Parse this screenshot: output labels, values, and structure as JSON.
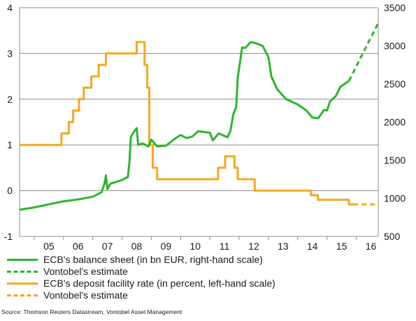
{
  "chart_data": {
    "type": "line",
    "x_tick_labels": [
      "05",
      "06",
      "07",
      "08",
      "09",
      "10",
      "11",
      "12",
      "13",
      "14",
      "15",
      "16"
    ],
    "y_left": {
      "ylim": [
        -1,
        4
      ],
      "ticks": [
        "-1",
        "0",
        "1",
        "2",
        "3",
        "4"
      ]
    },
    "y_right": {
      "ylim": [
        500,
        3500
      ],
      "ticks": [
        "500",
        "1000",
        "1500",
        "2000",
        "2500",
        "3000",
        "3500"
      ]
    },
    "grid": "horizontal",
    "legend_placement": "bottom",
    "colors": {
      "balance": "#2db52d",
      "rate": "#f5a81e"
    },
    "series": [
      {
        "name": "ECB's balance sheet (in bn EUR, right-hand scale)",
        "axis": "right",
        "style": "solid",
        "points": [
          [
            2004.5,
            850
          ],
          [
            2005.0,
            880
          ],
          [
            2005.5,
            920
          ],
          [
            2006.0,
            960
          ],
          [
            2006.5,
            985
          ],
          [
            2007.0,
            1020
          ],
          [
            2007.3,
            1080
          ],
          [
            2007.4,
            1190
          ],
          [
            2007.45,
            1300
          ],
          [
            2007.5,
            1120
          ],
          [
            2007.6,
            1190
          ],
          [
            2008.0,
            1240
          ],
          [
            2008.2,
            1280
          ],
          [
            2008.25,
            1460
          ],
          [
            2008.3,
            1800
          ],
          [
            2008.4,
            1870
          ],
          [
            2008.5,
            1920
          ],
          [
            2008.55,
            1700
          ],
          [
            2008.7,
            1720
          ],
          [
            2008.9,
            1680
          ],
          [
            2009.0,
            1770
          ],
          [
            2009.2,
            1680
          ],
          [
            2009.5,
            1690
          ],
          [
            2009.8,
            1780
          ],
          [
            2010.0,
            1830
          ],
          [
            2010.2,
            1790
          ],
          [
            2010.4,
            1810
          ],
          [
            2010.6,
            1880
          ],
          [
            2011.0,
            1860
          ],
          [
            2011.1,
            1760
          ],
          [
            2011.3,
            1850
          ],
          [
            2011.6,
            1800
          ],
          [
            2011.7,
            1880
          ],
          [
            2011.8,
            2100
          ],
          [
            2011.9,
            2200
          ],
          [
            2011.95,
            2580
          ],
          [
            2012.1,
            2980
          ],
          [
            2012.2,
            2970
          ],
          [
            2012.4,
            3050
          ],
          [
            2012.6,
            3030
          ],
          [
            2012.8,
            3000
          ],
          [
            2013.0,
            2850
          ],
          [
            2013.1,
            2600
          ],
          [
            2013.3,
            2430
          ],
          [
            2013.6,
            2300
          ],
          [
            2014.0,
            2230
          ],
          [
            2014.3,
            2150
          ],
          [
            2014.5,
            2060
          ],
          [
            2014.7,
            2050
          ],
          [
            2014.9,
            2160
          ],
          [
            2015.0,
            2150
          ],
          [
            2015.1,
            2270
          ],
          [
            2015.3,
            2340
          ],
          [
            2015.45,
            2460
          ],
          [
            2015.75,
            2540
          ]
        ]
      },
      {
        "name": "Vontobel's estimate",
        "axis": "right",
        "style": "dashed",
        "points": [
          [
            2015.75,
            2540
          ],
          [
            2016.75,
            3300
          ]
        ]
      },
      {
        "name": "ECB's deposit facility rate (in percent, left-hand scale)",
        "axis": "left",
        "style": "solid",
        "points": [
          [
            2004.5,
            1.0
          ],
          [
            2005.93,
            1.0
          ],
          [
            2005.93,
            1.25
          ],
          [
            2006.18,
            1.25
          ],
          [
            2006.18,
            1.5
          ],
          [
            2006.33,
            1.5
          ],
          [
            2006.33,
            1.75
          ],
          [
            2006.53,
            1.75
          ],
          [
            2006.53,
            2.0
          ],
          [
            2006.69,
            2.0
          ],
          [
            2006.69,
            2.25
          ],
          [
            2006.95,
            2.25
          ],
          [
            2006.95,
            2.5
          ],
          [
            2007.2,
            2.5
          ],
          [
            2007.2,
            2.75
          ],
          [
            2007.45,
            2.75
          ],
          [
            2007.45,
            3.0
          ],
          [
            2008.5,
            3.0
          ],
          [
            2008.5,
            3.25
          ],
          [
            2008.77,
            3.25
          ],
          [
            2008.77,
            2.75
          ],
          [
            2008.86,
            2.75
          ],
          [
            2008.86,
            2.25
          ],
          [
            2008.93,
            2.25
          ],
          [
            2008.93,
            1.0
          ],
          [
            2009.05,
            1.0
          ],
          [
            2009.05,
            0.5
          ],
          [
            2009.2,
            0.5
          ],
          [
            2009.2,
            0.25
          ],
          [
            2011.28,
            0.25
          ],
          [
            2011.28,
            0.5
          ],
          [
            2011.52,
            0.5
          ],
          [
            2011.52,
            0.75
          ],
          [
            2011.84,
            0.75
          ],
          [
            2011.84,
            0.5
          ],
          [
            2011.95,
            0.5
          ],
          [
            2011.95,
            0.25
          ],
          [
            2012.53,
            0.25
          ],
          [
            2012.53,
            0.0
          ],
          [
            2014.45,
            0.0
          ],
          [
            2014.45,
            -0.1
          ],
          [
            2014.69,
            -0.1
          ],
          [
            2014.69,
            -0.2
          ],
          [
            2015.75,
            -0.2
          ],
          [
            2015.75,
            -0.3
          ],
          [
            2015.9,
            -0.3
          ]
        ]
      },
      {
        "name": "Vontobel's estimate",
        "axis": "left",
        "style": "dashed",
        "points": [
          [
            2015.9,
            -0.3
          ],
          [
            2016.75,
            -0.3
          ]
        ]
      }
    ]
  },
  "source": "Source: Thomson Reuters Datastream, Vontobel Asset Management"
}
